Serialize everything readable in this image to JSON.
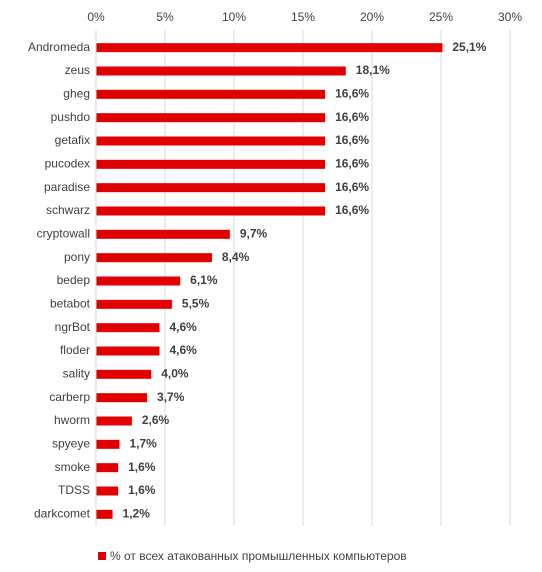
{
  "chart_data": {
    "type": "bar",
    "orientation": "horizontal",
    "categories": [
      "Andromeda",
      "zeus",
      "gheg",
      "pushdo",
      "getafix",
      "pucodex",
      "paradise",
      "schwarz",
      "cryptowall",
      "pony",
      "bedep",
      "betabot",
      "ngrBot",
      "floder",
      "sality",
      "carberp",
      "hworm",
      "spyeye",
      "smoke",
      "TDSS",
      "darkcomet"
    ],
    "series": [
      {
        "name": "% от всех атакованных промышленных компьютеров",
        "color": "#e00000",
        "values": [
          25.1,
          18.1,
          16.6,
          16.6,
          16.6,
          16.6,
          16.6,
          16.6,
          9.7,
          8.4,
          6.1,
          5.5,
          4.6,
          4.6,
          4.0,
          3.7,
          2.6,
          1.7,
          1.6,
          1.6,
          1.2
        ],
        "value_labels": [
          "25,1%",
          "18,1%",
          "16,6%",
          "16,6%",
          "16,6%",
          "16,6%",
          "16,6%",
          "16,6%",
          "9,7%",
          "8,4%",
          "6,1%",
          "5,5%",
          "4,6%",
          "4,6%",
          "4,0%",
          "3,7%",
          "2,6%",
          "1,7%",
          "1,6%",
          "1,6%",
          "1,2%"
        ]
      }
    ],
    "xlim": [
      0,
      30
    ],
    "xticks": [
      {
        "value": 0,
        "label": "0%"
      },
      {
        "value": 5,
        "label": "5%"
      },
      {
        "value": 10,
        "label": "10%"
      },
      {
        "value": 15,
        "label": "15%"
      },
      {
        "value": 20,
        "label": "20%"
      },
      {
        "value": 25,
        "label": "25%"
      },
      {
        "value": 30,
        "label": "30%"
      }
    ],
    "grid": true,
    "legend": "bottom"
  }
}
